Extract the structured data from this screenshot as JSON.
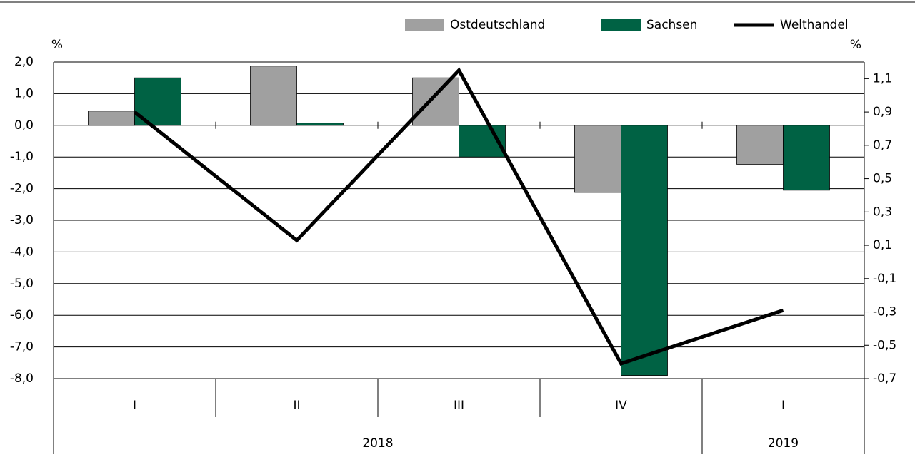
{
  "chart_data": {
    "type": "bar",
    "categories": [
      "I",
      "II",
      "III",
      "IV",
      "I"
    ],
    "x_groups": [
      "2018",
      "2018",
      "2018",
      "2018",
      "2019"
    ],
    "ylabel": "%",
    "y2label": "%",
    "ylim": [
      -8,
      2
    ],
    "yticks": [
      {
        "value": 2,
        "label": "2,0"
      },
      {
        "value": 1,
        "label": "1,0"
      },
      {
        "value": 0,
        "label": "0,0"
      },
      {
        "value": -1,
        "label": "-1,0"
      },
      {
        "value": -2,
        "label": "-2,0"
      },
      {
        "value": -3,
        "label": "-3,0"
      },
      {
        "value": -4,
        "label": "-4,0"
      },
      {
        "value": -5,
        "label": "-5,0"
      },
      {
        "value": -6,
        "label": "-6,0"
      },
      {
        "value": -7,
        "label": "-7,0"
      },
      {
        "value": -8,
        "label": "-8,0"
      }
    ],
    "y2lim": [
      -0.7,
      1.2
    ],
    "y2ticks": [
      {
        "value": 1.1,
        "label": "1,1"
      },
      {
        "value": 0.9,
        "label": "0,9"
      },
      {
        "value": 0.7,
        "label": "0,7"
      },
      {
        "value": 0.5,
        "label": "0,5"
      },
      {
        "value": 0.3,
        "label": "0,3"
      },
      {
        "value": 0.1,
        "label": "0,1"
      },
      {
        "value": -0.1,
        "label": "-0,1"
      },
      {
        "value": -0.3,
        "label": "-0,3"
      },
      {
        "value": -0.5,
        "label": "-0,5"
      },
      {
        "value": -0.7,
        "label": "-0,7"
      }
    ],
    "grid": true,
    "legend": "top-right",
    "series": [
      {
        "name": "Ostdeutschland",
        "type": "bar",
        "color": "#a0a0a0",
        "values": [
          0.45,
          1.87,
          1.5,
          -2.12,
          -1.23
        ]
      },
      {
        "name": "Sachsen",
        "type": "bar",
        "color": "#006244",
        "values": [
          1.5,
          0.07,
          -1.0,
          -7.9,
          -2.05
        ]
      },
      {
        "name": "Welthandel",
        "type": "line",
        "axis": "y2",
        "color": "#000000",
        "values": [
          0.9,
          0.13,
          1.15,
          -0.61,
          -0.29
        ]
      }
    ]
  }
}
